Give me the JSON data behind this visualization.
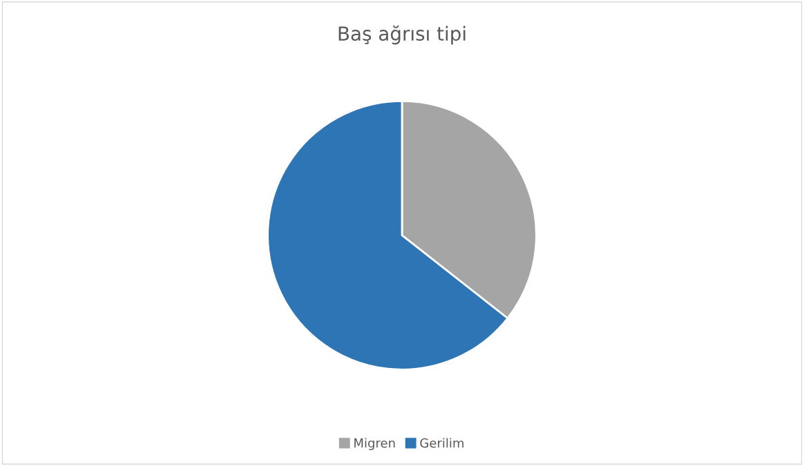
{
  "chart_data": {
    "type": "pie",
    "title": "Baş ağrısı tipi",
    "categories": [
      "Migren",
      "Gerilim"
    ],
    "values": [
      35.6,
      64.4
    ],
    "colors": [
      "#a5a5a5",
      "#2e75b6"
    ],
    "legend": "bottom"
  }
}
